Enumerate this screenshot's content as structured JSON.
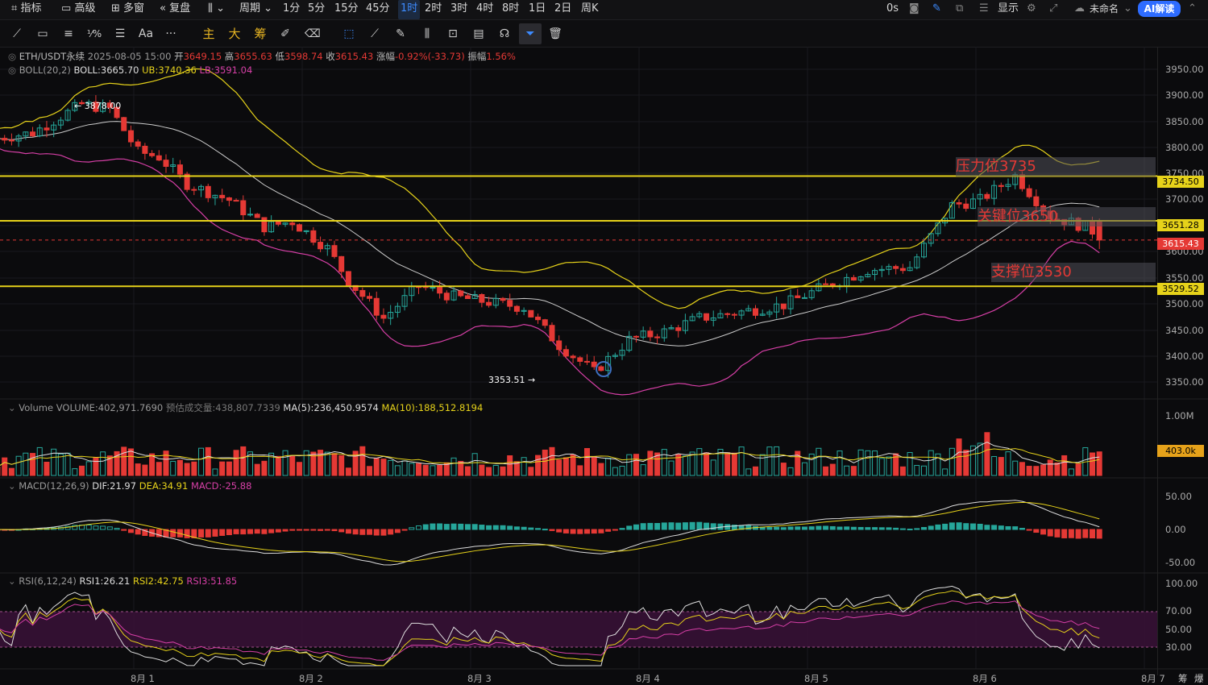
{
  "topbar": {
    "indicators": "指标",
    "advanced": "高级",
    "multiwindow": "多窗",
    "replay": "复盘",
    "period": "周期",
    "intervals": [
      "1分",
      "5分",
      "15分",
      "45分",
      "1时",
      "2时",
      "3时",
      "4时",
      "8时",
      "1日",
      "2日",
      "周K"
    ],
    "active_interval": "1时",
    "countdown": "0s",
    "display": "显示",
    "unnamed": "未命名",
    "ai_button": "AI解读"
  },
  "toolbar": {
    "main": "主",
    "large": "大",
    "chips": "筹",
    "text": "Aa",
    "more": "···"
  },
  "legend": {
    "symbol": "ETH/USDT永续",
    "time": "2025-08-05 15:00",
    "open_label": "开",
    "open": "3649.15",
    "high_label": "高",
    "high": "3655.63",
    "low_label": "低",
    "low": "3598.74",
    "close_label": "收",
    "close": "3615.43",
    "change_label": "涨幅",
    "change": "-0.92%(-33.73)",
    "amp_label": "振幅",
    "amp": "1.56%",
    "boll_name": "BOLL(20,2)",
    "boll": "BOLL:3665.70",
    "ub": "UB:3740.36",
    "lb": "LB:3591.04"
  },
  "volume_legend": {
    "name": "Volume",
    "volume": "VOLUME:402,971.7690",
    "est": "预估成交量:438,807.7339",
    "ma5": "MA(5):236,450.9574",
    "ma10": "MA(10):188,512.8194"
  },
  "macd_legend": {
    "name": "MACD(12,26,9)",
    "dif": "DIF:21.97",
    "dea": "DEA:34.91",
    "macd": "MACD:-25.88"
  },
  "rsi_legend": {
    "name": "RSI(6,12,24)",
    "rsi1": "RSI1:26.21",
    "rsi2": "RSI2:42.75",
    "rsi3": "RSI3:51.85"
  },
  "annotations": {
    "resistance": "压力位3735",
    "key": "关键位3650",
    "support": "支撑位3530",
    "high_mark": "3878.00",
    "low_mark": "3353.51"
  },
  "price_axis": [
    "3950.00",
    "3900.00",
    "3850.00",
    "3800.00",
    "3750.00",
    "3700.00",
    "3600.00",
    "3550.00",
    "3500.00",
    "3450.00",
    "3400.00",
    "3350.00"
  ],
  "price_tags": {
    "resistance": "3734.50",
    "key": "3651.28",
    "current": "3615.43",
    "support": "3529.52"
  },
  "volume_axis": [
    "1.00M"
  ],
  "volume_tag": "403.0k",
  "macd_axis": [
    "50.00",
    "0.00",
    "-50.00"
  ],
  "rsi_axis": [
    "100.00",
    "70.00",
    "50.00",
    "30.00"
  ],
  "x_axis": [
    "8月 1",
    "8月 2",
    "8月 3",
    "8月 4",
    "8月 5",
    "8月 6",
    "8月 7"
  ],
  "corner": [
    "筹",
    "爆"
  ],
  "colors": {
    "up": "#26a69a",
    "down": "#e53935",
    "level": "#e6d21a",
    "boll_mid": "#cccccc",
    "boll_upper": "#e6d21a",
    "boll_lower": "#d63fa6",
    "accent": "#3d8bff"
  },
  "chart_data": {
    "type": "candlestick",
    "price_range": [
      3320,
      3975
    ],
    "levels": [
      3734.5,
      3651.28,
      3529.52
    ],
    "current_price": 3615.43
  }
}
